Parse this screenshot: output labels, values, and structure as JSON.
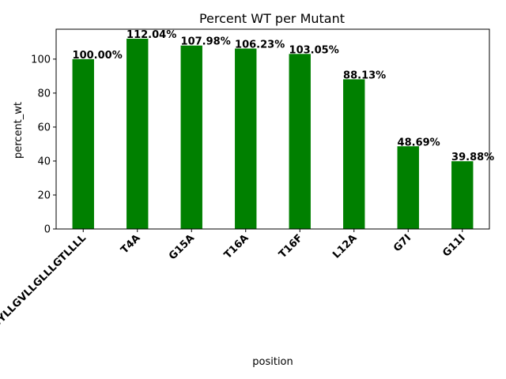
{
  "chart_data": {
    "type": "bar",
    "title": "Percent WT per Mutant",
    "xlabel": "position",
    "ylabel": "percent_wt",
    "categories": [
      "LLLSYLLGVLLGLLLGTLLLL",
      "T4A",
      "G15A",
      "T16A",
      "T16F",
      "L12A",
      "G7I",
      "G11I"
    ],
    "values": [
      100.0,
      112.04,
      107.98,
      106.23,
      103.05,
      88.13,
      48.69,
      39.88
    ],
    "data_labels": [
      "100.00%",
      "112.04%",
      "107.98%",
      "106.23%",
      "103.05%",
      "88.13%",
      "48.69%",
      "39.88%"
    ],
    "ylim": [
      0,
      117.6
    ],
    "yticks": [
      0,
      20,
      40,
      60,
      80,
      100
    ],
    "ytick_labels": [
      "0",
      "20",
      "40",
      "60",
      "80",
      "100"
    ],
    "bar_color": "#008000",
    "grid": false,
    "legend": "none"
  }
}
